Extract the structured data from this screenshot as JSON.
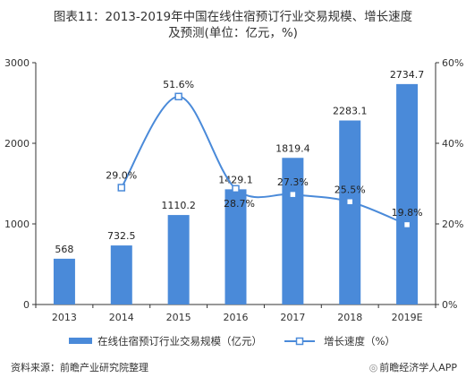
{
  "title_line1": "图表11：2013-2019年中国在线住宿预订行业交易规模、增长速度",
  "title_line2": "及预测(单位：亿元，%)",
  "source": "资料来源：前瞻产业研究院整理",
  "brand": "前瞻经济学人APP",
  "chart_data": {
    "type": "bar",
    "categories": [
      "2013",
      "2014",
      "2015",
      "2016",
      "2017",
      "2018",
      "2019E"
    ],
    "series": [
      {
        "name": "在线住宿预订行业交易规模（亿元）",
        "type": "bar",
        "axis": "left",
        "values": [
          568,
          732.5,
          1110.2,
          1429.1,
          1819.4,
          2283.1,
          2734.7
        ],
        "labels": [
          "568",
          "732.5",
          "1110.2",
          "1429.1",
          "1819.4",
          "2283.1",
          "2734.7"
        ],
        "color": "#4a8ad9"
      },
      {
        "name": "增长速度（%）",
        "type": "line",
        "axis": "right",
        "values": [
          null,
          29.0,
          51.6,
          28.7,
          27.3,
          25.5,
          19.8
        ],
        "labels": [
          "",
          "29.0%",
          "51.6%",
          "28.7%",
          "27.3%",
          "25.5%",
          "19.8%"
        ],
        "color": "#4a8ad9"
      }
    ],
    "yleft": {
      "min": 0,
      "max": 3000,
      "ticks": [
        0,
        1000,
        2000,
        3000
      ],
      "tick_labels": [
        "0",
        "1000",
        "2000",
        "3000"
      ]
    },
    "yright": {
      "min": 0,
      "max": 60,
      "ticks": [
        0,
        20,
        40,
        60
      ],
      "tick_labels": [
        "0%",
        "20%",
        "40%",
        "60%"
      ]
    },
    "grid": false,
    "legend": "bottom"
  }
}
